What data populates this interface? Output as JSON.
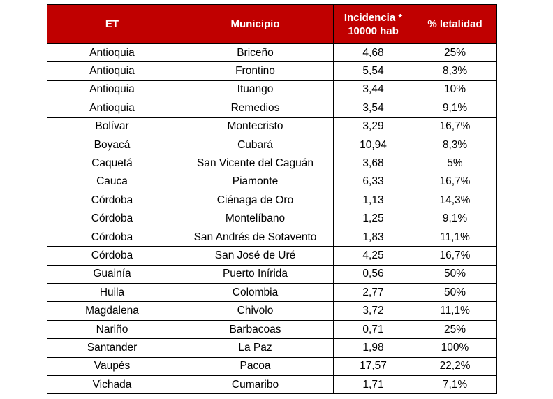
{
  "table": {
    "headers": {
      "et": "ET",
      "municipio": "Municipio",
      "incidencia_line1": "Incidencia *",
      "incidencia_line2": "10000 hab",
      "letalidad": "% letalidad"
    },
    "rows": [
      {
        "et": "Antioquia",
        "municipio": "Briceño",
        "incidencia": "4,68",
        "letalidad": "25%"
      },
      {
        "et": "Antioquia",
        "municipio": "Frontino",
        "incidencia": "5,54",
        "letalidad": "8,3%"
      },
      {
        "et": "Antioquia",
        "municipio": "Ituango",
        "incidencia": "3,44",
        "letalidad": "10%"
      },
      {
        "et": "Antioquia",
        "municipio": "Remedios",
        "incidencia": "3,54",
        "letalidad": "9,1%"
      },
      {
        "et": "Bolívar",
        "municipio": "Montecristo",
        "incidencia": "3,29",
        "letalidad": "16,7%"
      },
      {
        "et": "Boyacá",
        "municipio": "Cubará",
        "incidencia": "10,94",
        "letalidad": "8,3%"
      },
      {
        "et": "Caquetá",
        "municipio": "San Vicente del Caguán",
        "incidencia": "3,68",
        "letalidad": "5%"
      },
      {
        "et": "Cauca",
        "municipio": "Piamonte",
        "incidencia": "6,33",
        "letalidad": "16,7%"
      },
      {
        "et": "Córdoba",
        "municipio": "Ciénaga de Oro",
        "incidencia": "1,13",
        "letalidad": "14,3%"
      },
      {
        "et": "Córdoba",
        "municipio": "Montelíbano",
        "incidencia": "1,25",
        "letalidad": "9,1%"
      },
      {
        "et": "Córdoba",
        "municipio": "San Andrés de Sotavento",
        "incidencia": "1,83",
        "letalidad": "11,1%"
      },
      {
        "et": "Córdoba",
        "municipio": "San José de Uré",
        "incidencia": "4,25",
        "letalidad": "16,7%"
      },
      {
        "et": "Guainía",
        "municipio": "Puerto Inírida",
        "incidencia": "0,56",
        "letalidad": "50%"
      },
      {
        "et": "Huila",
        "municipio": "Colombia",
        "incidencia": "2,77",
        "letalidad": "50%"
      },
      {
        "et": "Magdalena",
        "municipio": "Chivolo",
        "incidencia": "3,72",
        "letalidad": "11,1%"
      },
      {
        "et": "Nariño",
        "municipio": "Barbacoas",
        "incidencia": "0,71",
        "letalidad": "25%"
      },
      {
        "et": "Santander",
        "municipio": "La Paz",
        "incidencia": "1,98",
        "letalidad": "100%"
      },
      {
        "et": "Vaupés",
        "municipio": "Pacoa",
        "incidencia": "17,57",
        "letalidad": "22,2%"
      },
      {
        "et": "Vichada",
        "municipio": "Cumaribo",
        "incidencia": "1,71",
        "letalidad": "7,1%"
      }
    ]
  },
  "colors": {
    "header_background": "#c00000",
    "header_text": "#ffffff",
    "border": "#000000"
  }
}
